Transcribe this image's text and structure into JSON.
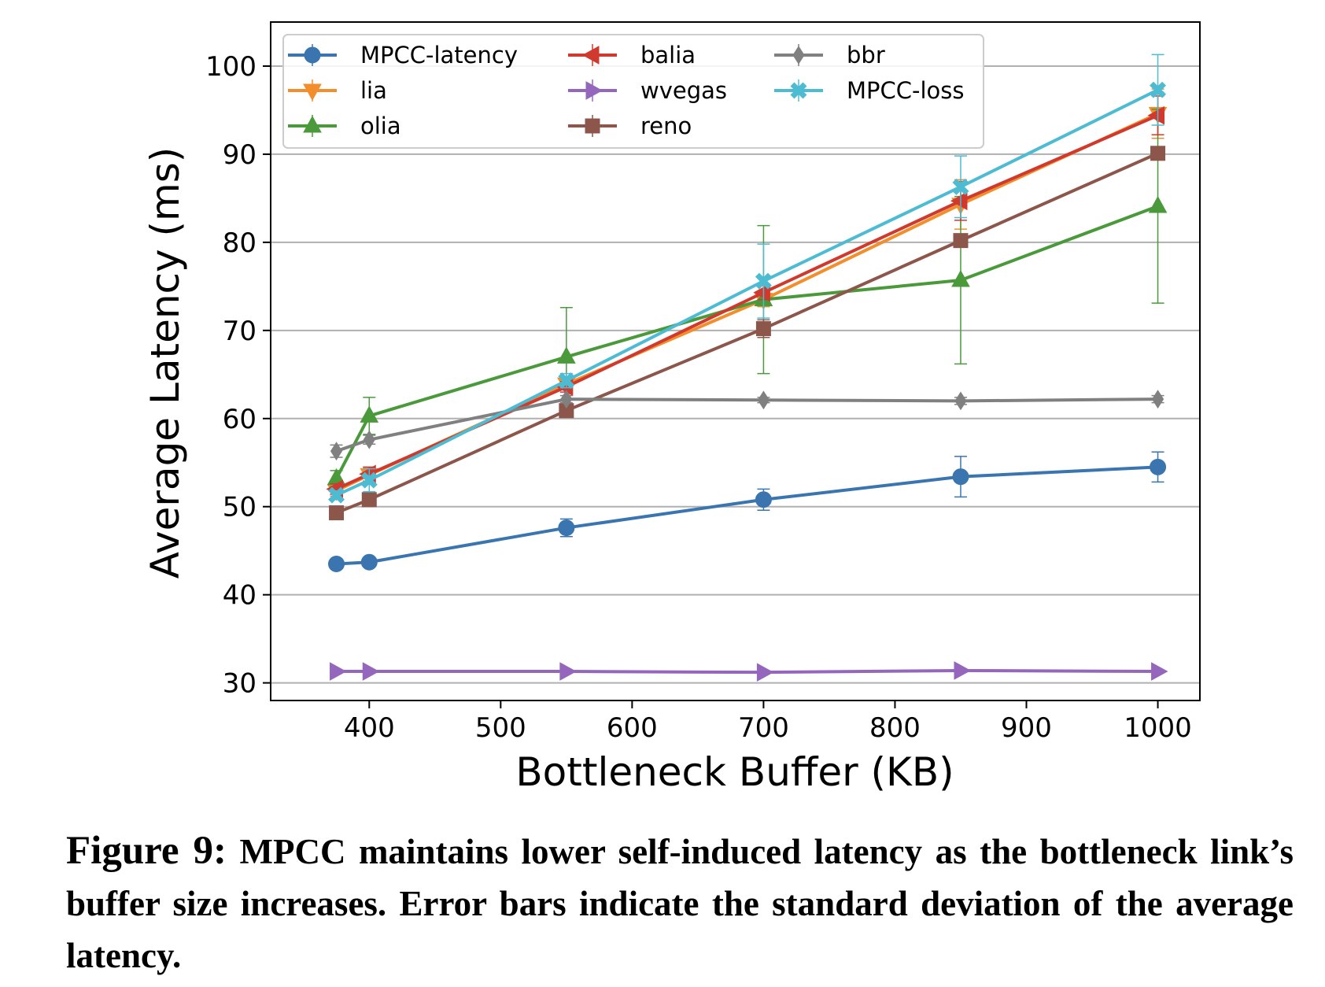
{
  "chart_data": {
    "type": "line",
    "xlabel": "Bottleneck Buffer (KB)",
    "ylabel": "Average Latency (ms)",
    "xlim": [
      325,
      1032
    ],
    "ylim": [
      28,
      105
    ],
    "xticks": [
      400,
      500,
      600,
      700,
      800,
      900,
      1000
    ],
    "yticks": [
      30,
      40,
      50,
      60,
      70,
      80,
      90,
      100
    ],
    "grid": "horizontal",
    "legend_position": "upper-left",
    "x": [
      375,
      400,
      550,
      700,
      850,
      1000
    ],
    "series": [
      {
        "name": "MPCC-latency",
        "color": "#3a75b0",
        "marker": "circle",
        "values": [
          43.5,
          43.7,
          47.6,
          50.8,
          53.4,
          54.5
        ],
        "errors": [
          0.3,
          0.3,
          1.0,
          1.2,
          2.3,
          1.7
        ]
      },
      {
        "name": "lia",
        "color": "#f28e2b",
        "marker": "triangle-down",
        "values": [
          51.8,
          53.6,
          63.9,
          73.5,
          84.3,
          94.6
        ],
        "errors": [
          0.6,
          0.8,
          0.6,
          0.8,
          2.8,
          2.8
        ]
      },
      {
        "name": "olia",
        "color": "#4a9a3c",
        "marker": "triangle-up",
        "values": [
          53.2,
          60.3,
          67.0,
          73.5,
          75.7,
          84.1
        ],
        "errors": [
          0.9,
          2.1,
          5.6,
          8.4,
          9.5,
          11.0
        ]
      },
      {
        "name": "balia",
        "color": "#d03a2e",
        "marker": "triangle-left",
        "values": [
          52.0,
          53.7,
          63.6,
          74.3,
          84.7,
          94.4
        ],
        "errors": [
          0.6,
          0.8,
          0.6,
          0.8,
          2.2,
          2.2
        ]
      },
      {
        "name": "wvegas",
        "color": "#9467bd",
        "marker": "triangle-right",
        "values": [
          31.3,
          31.3,
          31.3,
          31.2,
          31.4,
          31.3
        ],
        "errors": [
          0.0,
          0.0,
          0.0,
          0.0,
          0.0,
          0.0
        ]
      },
      {
        "name": "reno",
        "color": "#8c564b",
        "marker": "square",
        "values": [
          49.3,
          50.8,
          60.9,
          70.2,
          80.2,
          90.1
        ],
        "errors": [
          0.0,
          0.3,
          0.5,
          1.0,
          0.5,
          0.3
        ]
      },
      {
        "name": "bbr",
        "color": "#808080",
        "marker": "diamond",
        "values": [
          56.3,
          57.6,
          62.2,
          62.1,
          62.0,
          62.2
        ],
        "errors": [
          0.7,
          0.5,
          0.4,
          0.3,
          0.4,
          0.4
        ]
      },
      {
        "name": "MPCC-loss",
        "color": "#4dbcd3",
        "marker": "x-filled",
        "values": [
          51.3,
          53.0,
          64.3,
          75.6,
          86.3,
          97.3
        ],
        "errors": [
          0.5,
          1.3,
          0.8,
          4.2,
          3.5,
          4.0
        ]
      }
    ]
  },
  "caption": {
    "label": "Figure 9:",
    "text": "MPCC maintains lower self-induced latency as the bottleneck link’s buffer size increases. Error bars indicate the standard deviation of the average latency."
  }
}
